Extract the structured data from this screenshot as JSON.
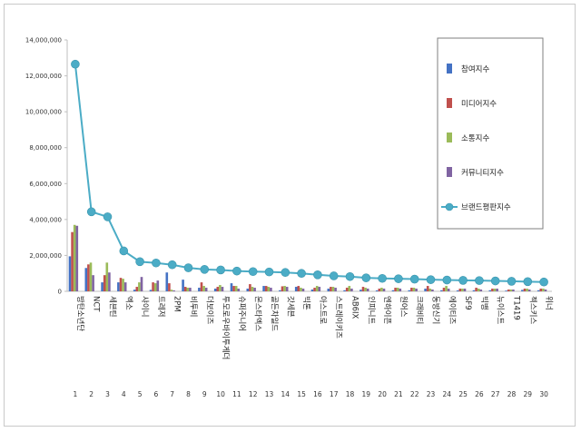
{
  "chart_data": {
    "type": "bar",
    "title": "",
    "xlabel": "",
    "ylabel": "",
    "ylim": [
      0,
      14000000
    ],
    "yticks": [
      "0",
      "2,000,000",
      "4,000,000",
      "6,000,000",
      "8,000,000",
      "10,000,000",
      "12,000,000",
      "14,000,000"
    ],
    "grid": false,
    "legend_position": "right",
    "ranks": [
      "1",
      "2",
      "3",
      "4",
      "5",
      "6",
      "7",
      "8",
      "9",
      "10",
      "11",
      "12",
      "13",
      "14",
      "15",
      "16",
      "17",
      "18",
      "19",
      "20",
      "21",
      "22",
      "23",
      "24",
      "25",
      "26",
      "27",
      "28",
      "29",
      "30"
    ],
    "categories": [
      "방탄소년단",
      "NCT",
      "세븐틴",
      "엑소",
      "샤이니",
      "트레저",
      "2PM",
      "비투비",
      "더보이즈",
      "투모로우바이투게더",
      "슈퍼주니어",
      "몬스타엑스",
      "골든차일드",
      "갓세븐",
      "빅톤",
      "아스트로",
      "스트레이키즈",
      "AB6IX",
      "인피니트",
      "엔하이픈",
      "원어스",
      "크래비티",
      "동방신기",
      "에이티즈",
      "SF9",
      "빅뱅",
      "뉴이스트",
      "T1419",
      "젝스키스",
      "위너"
    ],
    "series": [
      {
        "name": "참여지수",
        "color": "#4472c4",
        "values": [
          1950000,
          1300000,
          500000,
          500000,
          90000,
          80000,
          1050000,
          650000,
          200000,
          150000,
          450000,
          150000,
          300000,
          60000,
          250000,
          100000,
          150000,
          60000,
          90000,
          50000,
          60000,
          60000,
          150000,
          60000,
          50000,
          60000,
          60000,
          40000,
          80000,
          60000
        ]
      },
      {
        "name": "미디어지수",
        "color": "#c0504d",
        "values": [
          3300000,
          1500000,
          900000,
          750000,
          250000,
          500000,
          450000,
          250000,
          500000,
          250000,
          300000,
          400000,
          300000,
          280000,
          300000,
          200000,
          250000,
          200000,
          250000,
          150000,
          200000,
          200000,
          300000,
          200000,
          150000,
          200000,
          150000,
          100000,
          150000,
          150000
        ]
      },
      {
        "name": "소통지수",
        "color": "#9bbb59",
        "values": [
          3700000,
          1600000,
          1600000,
          700000,
          500000,
          450000,
          90000,
          200000,
          300000,
          350000,
          300000,
          250000,
          250000,
          300000,
          200000,
          300000,
          250000,
          300000,
          200000,
          200000,
          200000,
          200000,
          150000,
          300000,
          150000,
          150000,
          150000,
          100000,
          150000,
          150000
        ]
      },
      {
        "name": "커뮤니티지수",
        "color": "#8064a2",
        "values": [
          3650000,
          900000,
          1050000,
          500000,
          800000,
          600000,
          50000,
          200000,
          200000,
          250000,
          150000,
          200000,
          200000,
          250000,
          150000,
          250000,
          200000,
          150000,
          150000,
          150000,
          150000,
          150000,
          100000,
          150000,
          150000,
          100000,
          150000,
          100000,
          100000,
          100000
        ]
      }
    ],
    "line_series": {
      "name": "브랜드평판지수",
      "color": "#4bacc6",
      "values": [
        12650000,
        4430000,
        4150000,
        2250000,
        1650000,
        1580000,
        1480000,
        1310000,
        1220000,
        1190000,
        1130000,
        1100000,
        1080000,
        1050000,
        1000000,
        920000,
        860000,
        820000,
        750000,
        720000,
        700000,
        680000,
        650000,
        630000,
        610000,
        600000,
        580000,
        560000,
        540000,
        520000
      ]
    }
  }
}
